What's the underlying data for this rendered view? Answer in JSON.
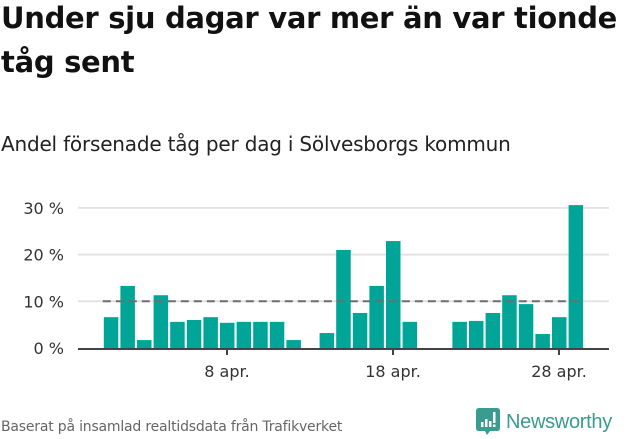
{
  "header": {
    "title": "Under sju dagar var mer än var tionde tåg sent",
    "subtitle": "Andel försenade tåg per dag i Sölvesborgs kommun"
  },
  "footer": {
    "source_note": "Baserat på insamlad realtidsdata från Trafikverket",
    "logo_text": "Newsworthy"
  },
  "colors": {
    "bar": "#00a598",
    "reference_line": "#6e6e73",
    "gridline": "#e3e3e3",
    "axis": "#444444",
    "logo": "#3a9b8f"
  },
  "chart_data": {
    "type": "bar",
    "title": "Under sju dagar var mer än var tionde tåg sent",
    "subtitle": "Andel försenade tåg per dag i Sölvesborgs kommun",
    "xlabel": "",
    "ylabel": "",
    "x_unit": "day of April",
    "x": [
      1,
      2,
      3,
      4,
      5,
      6,
      7,
      8,
      9,
      10,
      11,
      12,
      13,
      14,
      15,
      16,
      17,
      18,
      19,
      20,
      21,
      22,
      23,
      24,
      25,
      26,
      27,
      28,
      29
    ],
    "values": [
      6.6,
      13.3,
      1.7,
      11.3,
      5.6,
      6.0,
      6.6,
      5.4,
      5.6,
      5.6,
      5.6,
      1.7,
      null,
      3.2,
      21.0,
      7.5,
      13.3,
      22.9,
      5.6,
      null,
      null,
      5.6,
      5.8,
      7.5,
      11.3,
      9.4,
      3.0,
      6.6,
      30.6
    ],
    "ylim": [
      0,
      31
    ],
    "yticks": [
      0,
      10,
      20,
      30
    ],
    "ytick_labels": [
      "0 %",
      "10 %",
      "20 %",
      "30 %"
    ],
    "xticks": [
      8,
      18,
      28
    ],
    "xtick_labels": [
      "8 apr.",
      "18 apr.",
      "28 apr."
    ],
    "reference_line": {
      "value": 10,
      "style": "dashed"
    },
    "grid": true,
    "legend": null
  }
}
